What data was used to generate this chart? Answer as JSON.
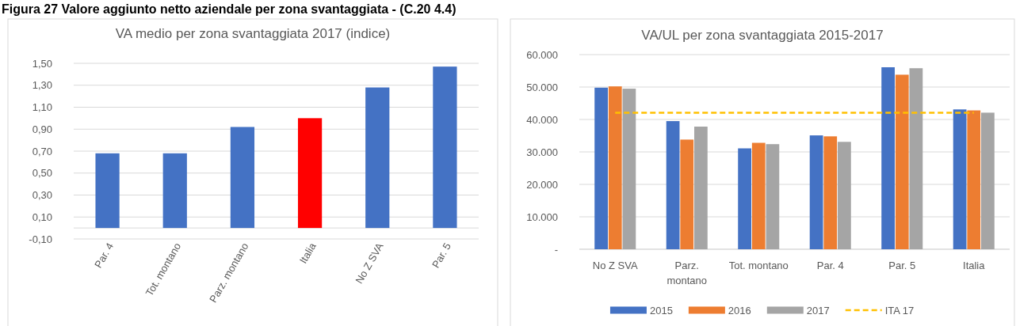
{
  "chart_data": [
    {
      "type": "bar",
      "title": "VA medio per zona svantaggiata 2017 (indice)",
      "annotations": [
        "Figura 27 Valore aggiunto netto aziendale per zona svantaggiata - (C.20 4.4)"
      ],
      "categories": [
        "Par. 4",
        "Tot. montano",
        "Parz. montano",
        "Italia",
        "No Z SVA",
        "Par. 5"
      ],
      "values": [
        0.68,
        0.68,
        0.92,
        1.0,
        1.28,
        1.47
      ],
      "colors": [
        "#4472c4",
        "#4472c4",
        "#4472c4",
        "#ff0000",
        "#4472c4",
        "#4472c4"
      ],
      "ylim": [
        -0.1,
        1.5
      ],
      "yticks": [
        {
          "value": -0.1,
          "label": "-0,10"
        },
        {
          "value": 0.1,
          "label": "0,10"
        },
        {
          "value": 0.3,
          "label": "0,30"
        },
        {
          "value": 0.5,
          "label": "0,50"
        },
        {
          "value": 0.7,
          "label": "0,70"
        },
        {
          "value": 0.9,
          "label": "0,90"
        },
        {
          "value": 1.1,
          "label": "1,10"
        },
        {
          "value": 1.3,
          "label": "1,30"
        },
        {
          "value": 1.5,
          "label": "1,50"
        }
      ],
      "grid": "y"
    },
    {
      "type": "bar",
      "title": "VA/UL per zona svantaggiata 2015-2017",
      "categories": [
        "No Z SVA",
        "Parz. montano",
        "Tot. montano",
        "Par. 4",
        "Par. 5",
        "Italia"
      ],
      "series": [
        {
          "name": "2015",
          "color": "#4472c4",
          "values": [
            49800,
            39500,
            31100,
            35100,
            56100,
            43100
          ]
        },
        {
          "name": "2016",
          "color": "#ed7d31",
          "values": [
            50200,
            33800,
            32800,
            34800,
            53800,
            42800
          ]
        },
        {
          "name": "2017",
          "color": "#a5a5a5",
          "values": [
            49500,
            37800,
            32400,
            33100,
            55800,
            42100
          ]
        },
        {
          "name": "ITA 17",
          "type": "line",
          "color": "#ffc000",
          "line_style": "dashed",
          "values": [
            42100,
            42100,
            42100,
            42100,
            42100,
            42100
          ]
        }
      ],
      "ylim": [
        0,
        60000
      ],
      "yticks": [
        {
          "value": 0,
          "label": "-"
        },
        {
          "value": 10000,
          "label": "10.000"
        },
        {
          "value": 20000,
          "label": "20.000"
        },
        {
          "value": 30000,
          "label": "30.000"
        },
        {
          "value": 40000,
          "label": "40.000"
        },
        {
          "value": 50000,
          "label": "50.000"
        },
        {
          "value": 60000,
          "label": "60.000"
        }
      ],
      "grid": "y",
      "legend": "bottom"
    }
  ]
}
